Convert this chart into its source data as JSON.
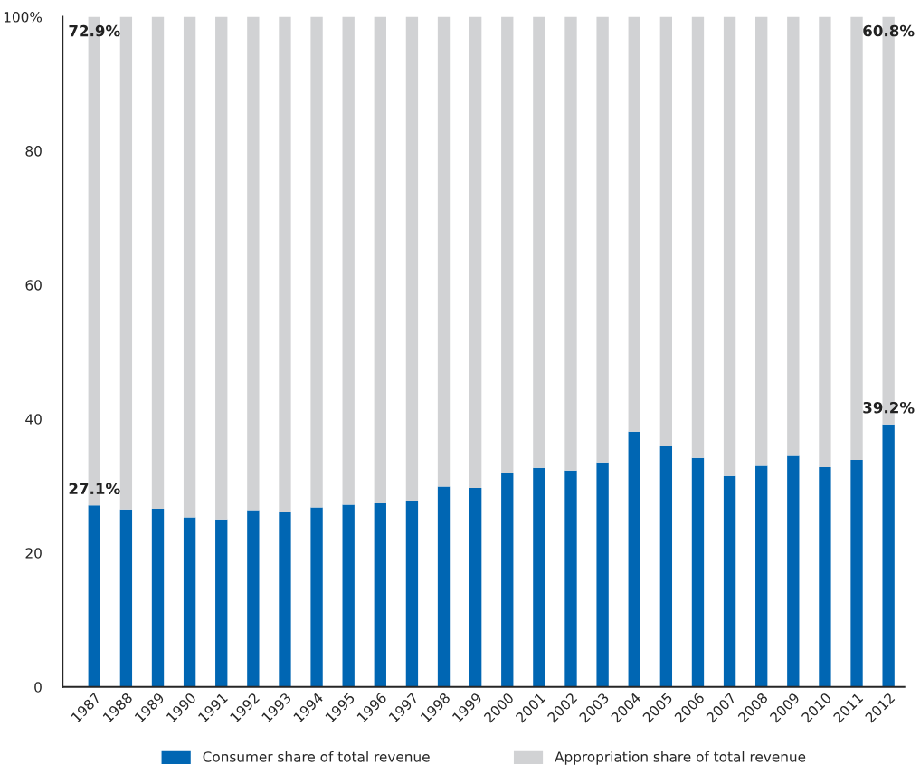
{
  "chart_data": {
    "type": "bar",
    "stacked": true,
    "categories": [
      "1987",
      "1988",
      "1989",
      "1990",
      "1991",
      "1992",
      "1993",
      "1994",
      "1995",
      "1996",
      "1997",
      "1998",
      "1999",
      "2000",
      "2001",
      "2002",
      "2003",
      "2004",
      "2005",
      "2006",
      "2007",
      "2008",
      "2009",
      "2010",
      "2011",
      "2012"
    ],
    "series": [
      {
        "name": "Consumer share of total revenue",
        "color": "#0066b3",
        "values": [
          27.1,
          26.5,
          26.6,
          25.3,
          25.0,
          26.4,
          26.1,
          26.8,
          27.2,
          27.4,
          27.8,
          29.9,
          29.7,
          32.0,
          32.7,
          32.3,
          33.5,
          38.1,
          35.9,
          34.2,
          31.5,
          33.0,
          34.5,
          32.8,
          33.9,
          39.2
        ],
        "value_labels": [
          "27.1%",
          null,
          null,
          null,
          null,
          null,
          null,
          null,
          null,
          null,
          null,
          null,
          null,
          null,
          null,
          null,
          null,
          null,
          null,
          null,
          null,
          null,
          null,
          null,
          null,
          "39.2%"
        ]
      },
      {
        "name": "Appropriation share of total revenue",
        "color": "#d1d2d4",
        "values": [
          72.9,
          73.5,
          73.4,
          74.7,
          75.0,
          73.6,
          73.9,
          73.2,
          72.8,
          72.6,
          72.2,
          70.1,
          70.3,
          68.0,
          67.3,
          67.7,
          66.5,
          61.9,
          64.1,
          65.8,
          68.5,
          67.0,
          65.5,
          67.2,
          66.1,
          60.8
        ],
        "value_labels": [
          "72.9%",
          null,
          null,
          null,
          null,
          null,
          null,
          null,
          null,
          null,
          null,
          null,
          null,
          null,
          null,
          null,
          null,
          null,
          null,
          null,
          null,
          null,
          null,
          null,
          null,
          "60.8%"
        ]
      }
    ],
    "ylim": [
      0,
      100
    ],
    "yticks": [
      0,
      20,
      40,
      60,
      80,
      {
        "value": 100,
        "label": "100%"
      }
    ],
    "grid": false,
    "legend": "bottom"
  }
}
